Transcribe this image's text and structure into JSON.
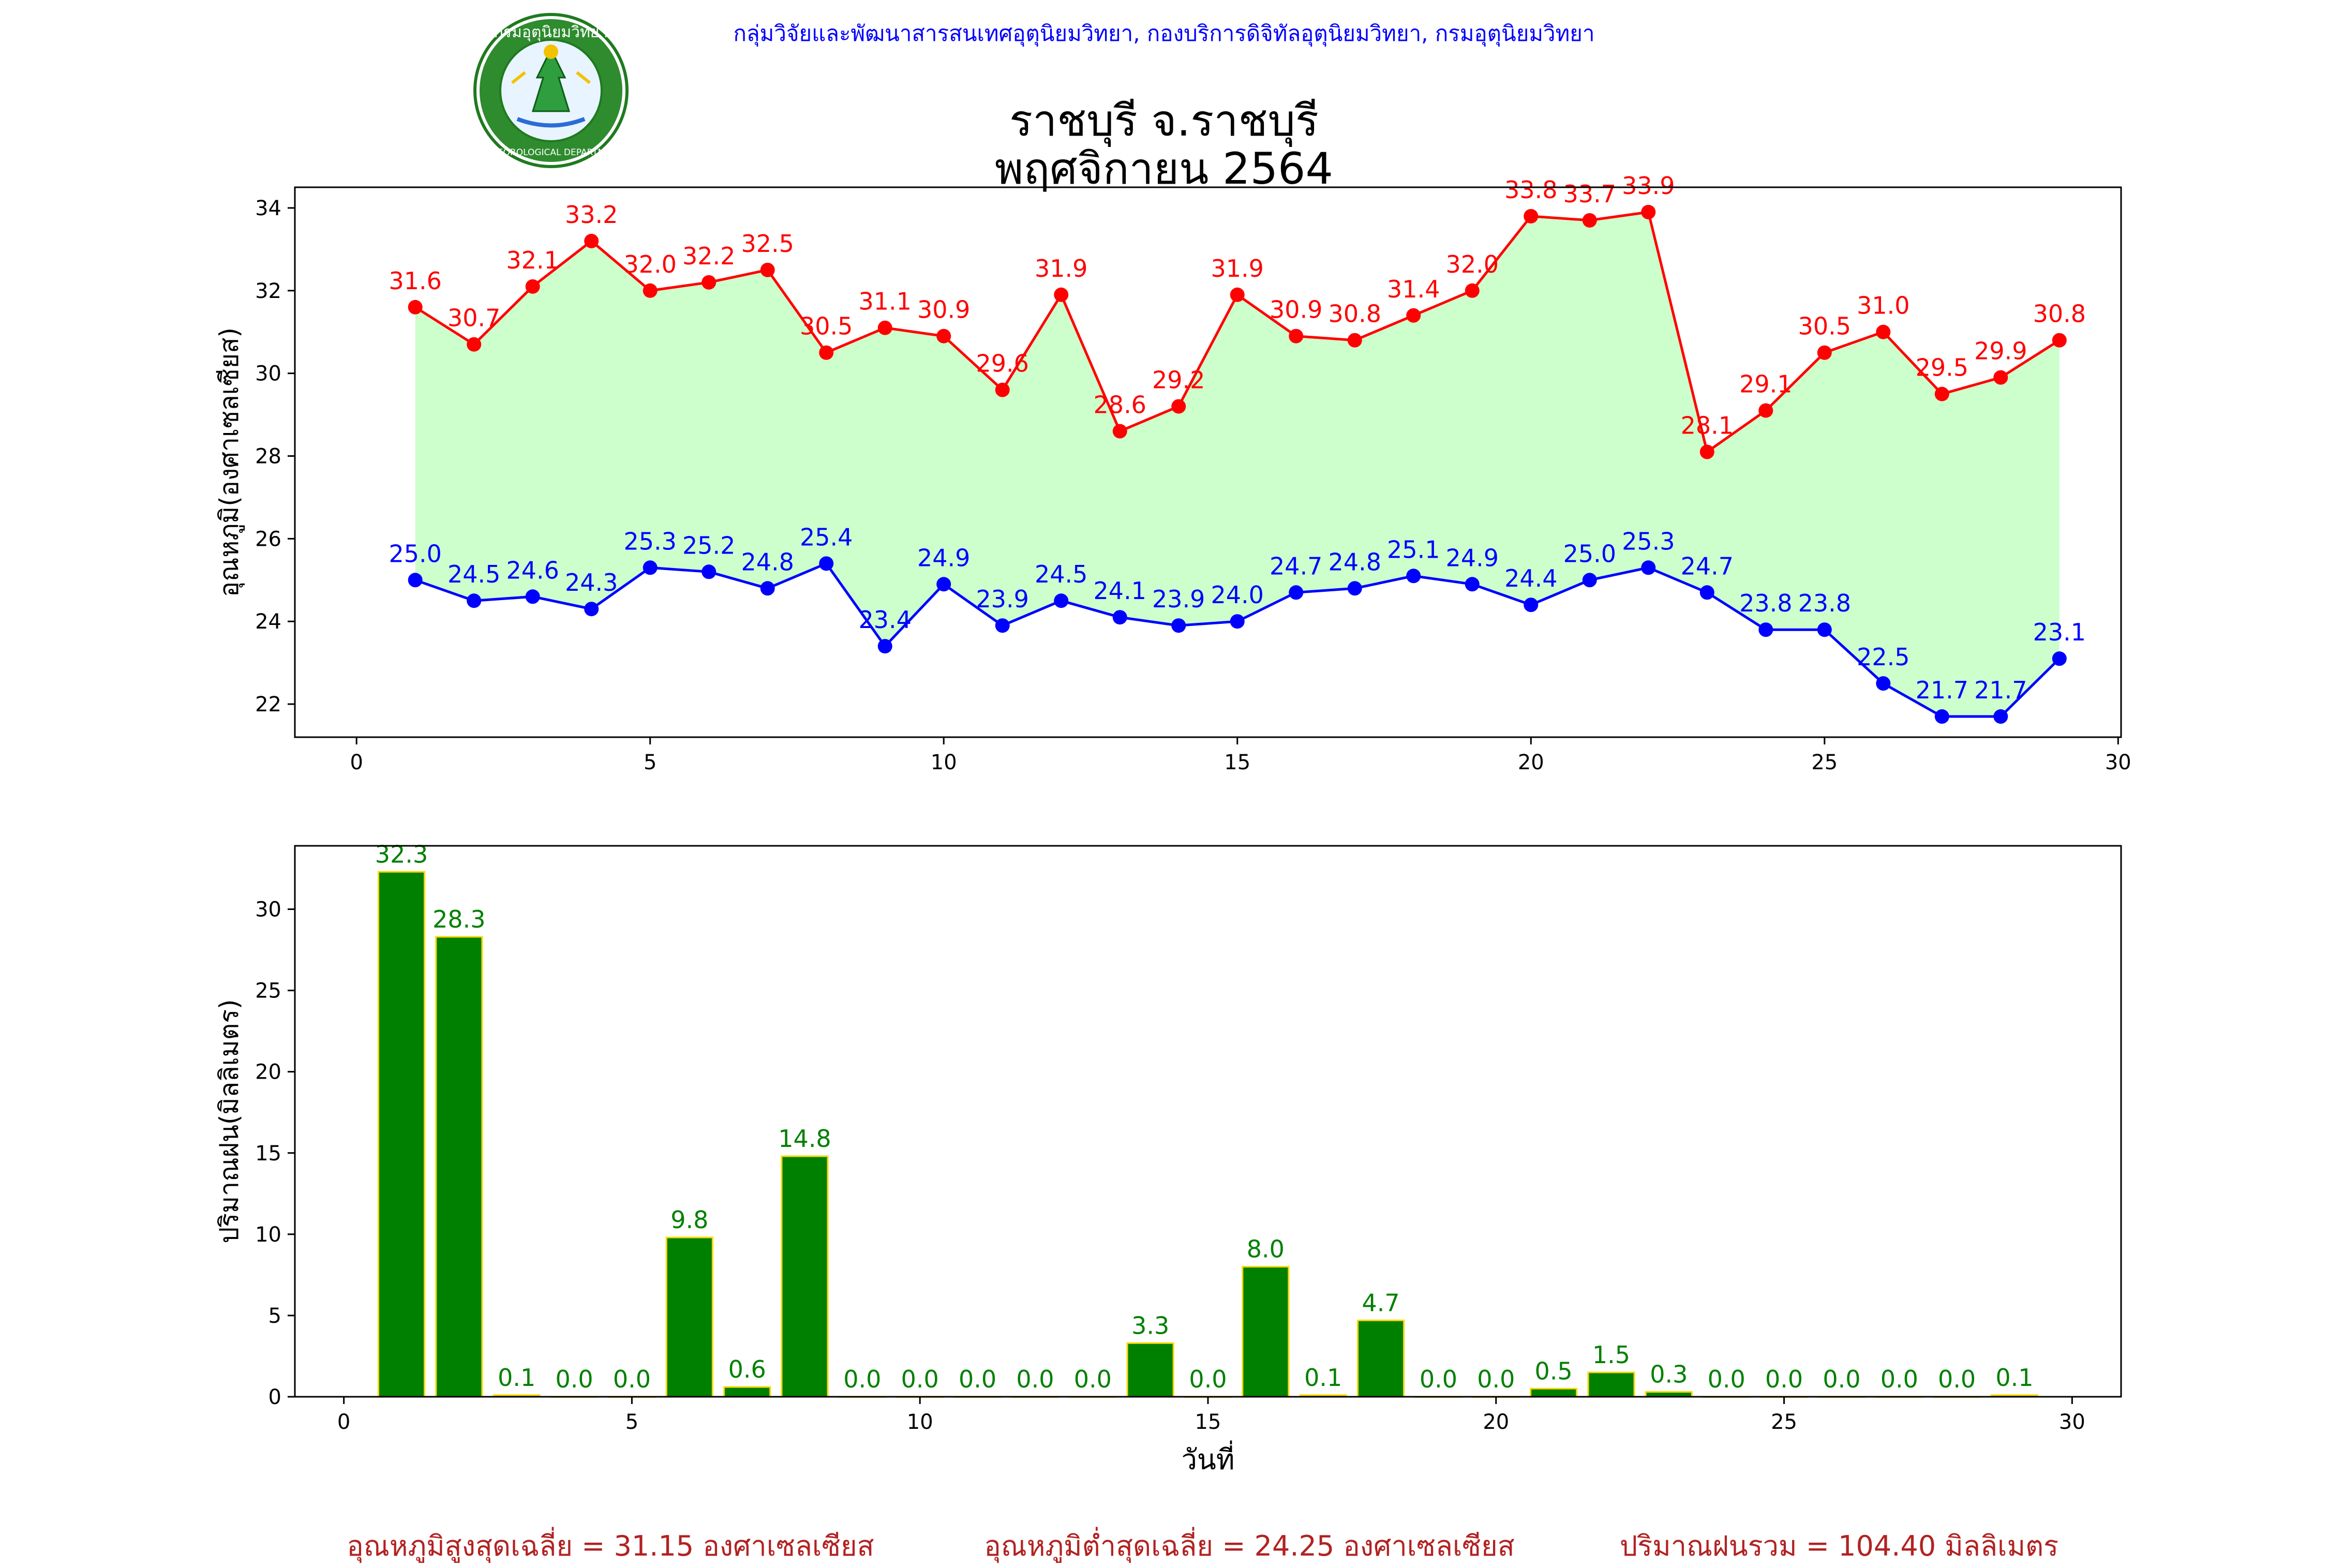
{
  "header": {
    "org_line": "กลุ่มวิจัยและพัฒนาสารสนเทศอุตุนิยมวิทยา, กองบริการดิจิทัลอุตุนิยมวิทยา, กรมอุตุนิยมวิทยา",
    "title_line1": "ราชบุรี จ.ราชบุรี",
    "title_line2": "พฤศจิกายน 2564",
    "logo": {
      "icon": "meteorological-department-seal",
      "top_text": "กรมอุตุนิยมวิทยา",
      "bottom_text": "METEOROLOGICAL DEPARTMENT"
    }
  },
  "colors": {
    "max_line": "#ff0000",
    "min_line": "#0000ff",
    "fill": "#ccffcc",
    "bar_fill": "#008000",
    "bar_edge": "#ffd700",
    "bar_label": "#008000",
    "header_text": "#0000ff",
    "footer_text": "#b22222"
  },
  "chart_data": [
    {
      "type": "line",
      "ylabel": "อุณหภูมิ(องศาเซลเซียส)",
      "xlabel": "",
      "xlim": [
        -1.05,
        30.05
      ],
      "ylim": [
        21.2,
        34.5
      ],
      "xticks": [
        0,
        5,
        10,
        15,
        20,
        25,
        30
      ],
      "yticks": [
        22,
        24,
        26,
        28,
        30,
        32,
        34
      ],
      "grid": false,
      "fill_between": true,
      "x": [
        1,
        2,
        3,
        4,
        5,
        6,
        7,
        8,
        9,
        10,
        11,
        12,
        13,
        14,
        15,
        16,
        17,
        18,
        19,
        20,
        21,
        22,
        23,
        24,
        25,
        26,
        27,
        28,
        29
      ],
      "series": [
        {
          "values": [
            31.6,
            30.7,
            32.1,
            33.2,
            32.0,
            32.2,
            32.5,
            30.5,
            31.1,
            30.9,
            29.6,
            31.9,
            28.6,
            29.2,
            31.9,
            30.9,
            30.8,
            31.4,
            32.0,
            33.8,
            33.7,
            33.9,
            28.1,
            29.1,
            30.5,
            31.0,
            29.5,
            29.9,
            30.8
          ]
        },
        {
          "values": [
            25.0,
            24.5,
            24.6,
            24.3,
            25.3,
            25.2,
            24.8,
            25.4,
            23.4,
            24.9,
            23.9,
            24.5,
            24.1,
            23.9,
            24.0,
            24.7,
            24.8,
            25.1,
            24.9,
            24.4,
            25.0,
            25.3,
            24.7,
            23.8,
            23.8,
            22.5,
            21.7,
            21.7,
            23.1
          ]
        }
      ]
    },
    {
      "type": "bar",
      "ylabel": "ปริมาณฝน(มิลลิเมตร)",
      "xlabel": "วันที่",
      "xlim": [
        -0.85,
        30.85
      ],
      "ylim": [
        0,
        33.9
      ],
      "xticks": [
        0,
        5,
        10,
        15,
        20,
        25,
        30
      ],
      "yticks": [
        0,
        5,
        10,
        15,
        20,
        25,
        30
      ],
      "grid": false,
      "x": [
        1,
        2,
        3,
        4,
        5,
        6,
        7,
        8,
        9,
        10,
        11,
        12,
        13,
        14,
        15,
        16,
        17,
        18,
        19,
        20,
        21,
        22,
        23,
        24,
        25,
        26,
        27,
        28,
        29
      ],
      "values": [
        32.3,
        28.3,
        0.1,
        0.0,
        0.0,
        9.8,
        0.6,
        14.8,
        0.0,
        0.0,
        0.0,
        0.0,
        0.0,
        3.3,
        0.0,
        8.0,
        0.1,
        4.7,
        0.0,
        0.0,
        0.5,
        1.5,
        0.3,
        0.0,
        0.0,
        0.0,
        0.0,
        0.0,
        0.1
      ]
    }
  ],
  "footer": {
    "avg_max": "อุณหภูมิสูงสุดเฉลี่ย = 31.15 องศาเซลเซียส",
    "avg_min": "อุณหภูมิต่ำสุดเฉลี่ย = 24.25 องศาเซลเซียส",
    "total_rain": "ปริมาณฝนรวม = 104.40 มิลลิเมตร"
  }
}
